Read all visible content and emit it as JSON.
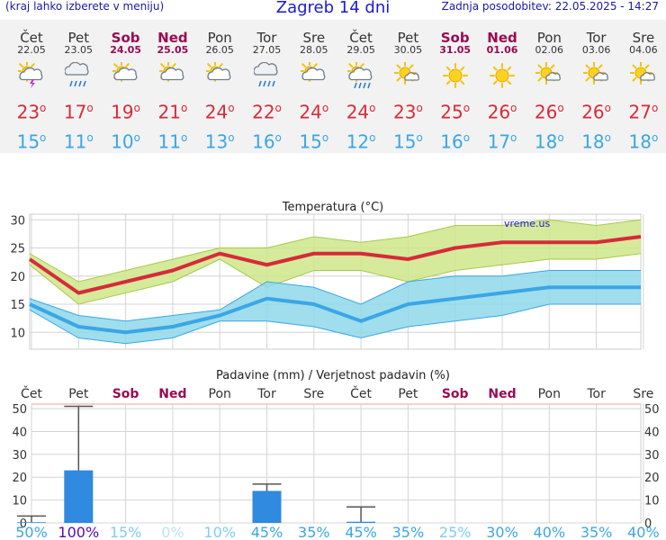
{
  "header": {
    "note": "(kraj lahko izberete v meniju)",
    "title": "Zagreb 14 dni",
    "updated": "Zadnja posodobitev: 22.05.2025 - 14:27"
  },
  "days": [
    {
      "name": "Čet",
      "date": "22.05",
      "weekend": false,
      "icon": "sun-cloud-rain-lightning-icon",
      "tmax": "23",
      "tmin": "15"
    },
    {
      "name": "Pet",
      "date": "23.05",
      "weekend": false,
      "icon": "cloud-rain-icon",
      "tmax": "17",
      "tmin": "11"
    },
    {
      "name": "Sob",
      "date": "24.05",
      "weekend": true,
      "icon": "sun-cloud-icon",
      "tmax": "19",
      "tmin": "10"
    },
    {
      "name": "Ned",
      "date": "25.05",
      "weekend": true,
      "icon": "sun-cloud-icon",
      "tmax": "21",
      "tmin": "11"
    },
    {
      "name": "Pon",
      "date": "26.05",
      "weekend": false,
      "icon": "sun-cloud-icon",
      "tmax": "24",
      "tmin": "13"
    },
    {
      "name": "Tor",
      "date": "27.05",
      "weekend": false,
      "icon": "cloud-rain-icon",
      "tmax": "22",
      "tmin": "16"
    },
    {
      "name": "Sre",
      "date": "28.05",
      "weekend": false,
      "icon": "sun-cloud-icon",
      "tmax": "24",
      "tmin": "15"
    },
    {
      "name": "Čet",
      "date": "29.05",
      "weekend": false,
      "icon": "sun-cloud-rain-icon",
      "tmax": "24",
      "tmin": "12"
    },
    {
      "name": "Pet",
      "date": "30.05",
      "weekend": false,
      "icon": "sun-small-cloud-icon",
      "tmax": "23",
      "tmin": "15"
    },
    {
      "name": "Sob",
      "date": "31.05",
      "weekend": true,
      "icon": "sun-icon",
      "tmax": "25",
      "tmin": "16"
    },
    {
      "name": "Ned",
      "date": "01.06",
      "weekend": true,
      "icon": "sun-icon",
      "tmax": "26",
      "tmin": "17"
    },
    {
      "name": "Pon",
      "date": "02.06",
      "weekend": false,
      "icon": "sun-small-cloud-icon",
      "tmax": "26",
      "tmin": "18"
    },
    {
      "name": "Tor",
      "date": "03.06",
      "weekend": false,
      "icon": "sun-small-cloud-icon",
      "tmax": "26",
      "tmin": "18"
    },
    {
      "name": "Sre",
      "date": "04.06",
      "weekend": false,
      "icon": "sun-small-cloud-icon",
      "tmax": "27",
      "tmin": "18"
    }
  ],
  "colors": {
    "max": "#d62b39",
    "min": "#3aa6e6",
    "max_band": "#cfe68a",
    "min_band": "#8fd8ea",
    "bar": "#2f8ae0",
    "weekend": "#9a0a52"
  },
  "chart_data": [
    {
      "type": "line",
      "title": "Temperatura (°C)",
      "watermark": "vreme.us",
      "ylim": [
        7,
        31
      ],
      "yticks": [
        10,
        15,
        20,
        25,
        30
      ],
      "grid": true,
      "series": [
        {
          "values": [
            23,
            17,
            19,
            21,
            24,
            22,
            24,
            24,
            23,
            25,
            26,
            26,
            26,
            27
          ],
          "band_low": [
            22,
            15,
            17,
            19,
            23,
            18,
            21,
            21,
            19,
            21,
            22,
            23,
            23,
            24
          ],
          "band_high": [
            24,
            19,
            21,
            23,
            25,
            25,
            27,
            26,
            27,
            29,
            29,
            30,
            29,
            30
          ]
        },
        {
          "values": [
            15,
            11,
            10,
            11,
            13,
            16,
            15,
            12,
            15,
            16,
            17,
            18,
            18,
            18
          ],
          "band_low": [
            14,
            9,
            8,
            9,
            12,
            12,
            11,
            9,
            11,
            12,
            13,
            15,
            15,
            15
          ],
          "band_high": [
            16,
            13,
            12,
            13,
            14,
            19,
            18,
            15,
            19,
            20,
            20,
            21,
            21,
            21
          ]
        }
      ]
    },
    {
      "type": "bar",
      "title": "Padavine (mm) / Verjetnost padavin (%)",
      "categories": [
        "Čet",
        "Pet",
        "Sob",
        "Ned",
        "Pon",
        "Tor",
        "Sre",
        "Čet",
        "Pet",
        "Sob",
        "Ned",
        "Pon",
        "Tor",
        "Sre"
      ],
      "weekend": [
        false,
        false,
        true,
        true,
        false,
        false,
        false,
        false,
        false,
        true,
        true,
        false,
        false,
        false
      ],
      "ylim": [
        0,
        52
      ],
      "yticks": [
        0,
        10,
        20,
        30,
        40,
        50
      ],
      "values": [
        0.3,
        23,
        0,
        0,
        0,
        14,
        0,
        0.5,
        0,
        0,
        0,
        0,
        0,
        0
      ],
      "error_high": [
        3,
        51,
        0,
        0,
        0,
        17,
        0,
        7,
        0,
        0,
        0,
        0,
        0,
        0
      ],
      "probability": [
        "50%",
        "100%",
        "15%",
        "0%",
        "10%",
        "45%",
        "35%",
        "45%",
        "35%",
        "25%",
        "30%",
        "40%",
        "35%",
        "40%"
      ]
    }
  ]
}
